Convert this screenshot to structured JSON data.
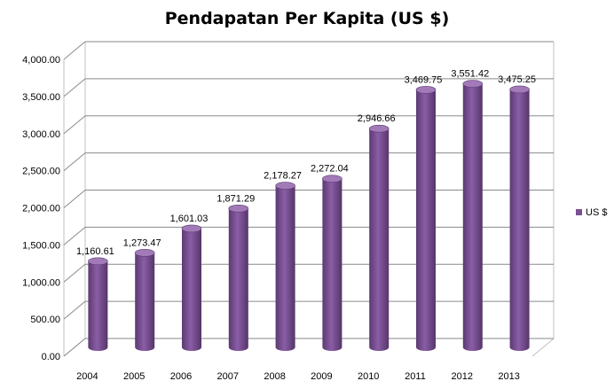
{
  "colors": {
    "bar_fill": "#7b4f96",
    "bar_top": "#a27ab8",
    "bar_dark": "#5c3a72",
    "gridline": "#8a8a8a",
    "wall": "#c0c0c0"
  },
  "chart_data": {
    "type": "bar",
    "title": "Pendapatan Per Kapita (US $)",
    "categories": [
      "2004",
      "2005",
      "2006",
      "2007",
      "2008",
      "2009",
      "2010",
      "2011",
      "2012",
      "2013"
    ],
    "series": [
      {
        "name": "US $",
        "values": [
          1160.61,
          1273.47,
          1601.03,
          1871.29,
          2178.27,
          2272.04,
          2946.66,
          3469.75,
          3551.42,
          3475.25
        ],
        "labels": [
          "1,160.61",
          "1,273.47",
          "1,601.03",
          "1,871.29",
          "2,178.27",
          "2,272.04",
          "2,946.66",
          "3,469.75",
          "3,551.42",
          "3,475.25"
        ]
      }
    ],
    "ylim": [
      0,
      4000
    ],
    "yticks": [
      0,
      500,
      1000,
      1500,
      2000,
      2500,
      3000,
      3500,
      4000
    ],
    "ytick_labels": [
      "0.00",
      "500.00",
      "1,000.00",
      "1,500.00",
      "2,000.00",
      "2,500.00",
      "3,000.00",
      "3,500.00",
      "4,000.00"
    ],
    "xlabel": "",
    "ylabel": "",
    "grid": true,
    "legend_position": "right",
    "style": "3d-cylinder"
  }
}
